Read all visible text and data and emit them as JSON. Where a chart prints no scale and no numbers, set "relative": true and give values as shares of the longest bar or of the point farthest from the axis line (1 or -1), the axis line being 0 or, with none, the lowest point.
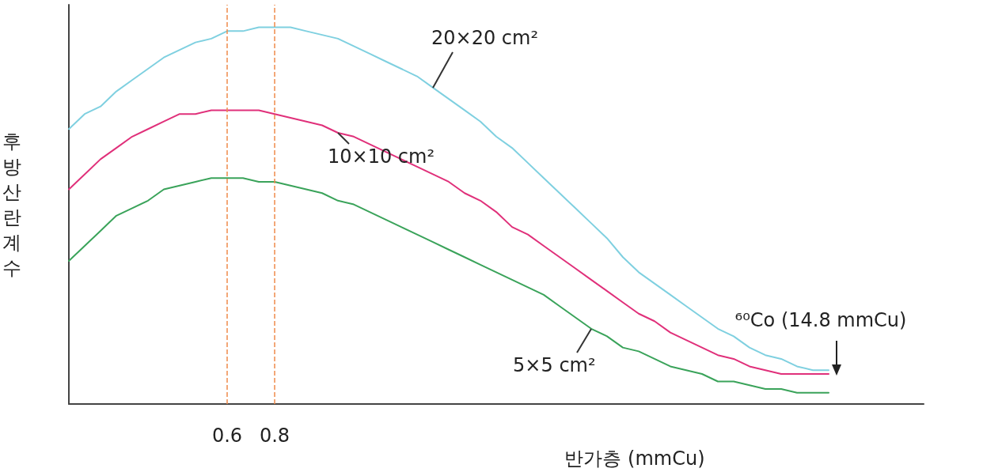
{
  "chart_data": {
    "type": "line",
    "relative": true,
    "xlabel": "반가층 (mmCu)",
    "ylabel": "후방산란계수",
    "categories": [
      null,
      null,
      null,
      null,
      null,
      null,
      null,
      null,
      null,
      null,
      "0.6",
      null,
      null,
      "0.8",
      null,
      null,
      null,
      null,
      null,
      null,
      null,
      null,
      null,
      null,
      null,
      null,
      null,
      null,
      null,
      null,
      null,
      null,
      null,
      null,
      null,
      null,
      null,
      null,
      null,
      null,
      null,
      null,
      null,
      null,
      null,
      null,
      null,
      null,
      null,
      null,
      null,
      null,
      null,
      null,
      null
    ],
    "series": [
      {
        "name": "20×20 cm²",
        "color": "#7fd0e0",
        "values": [
          0.73,
          0.77,
          0.79,
          0.83,
          0.86,
          0.89,
          0.92,
          0.94,
          0.96,
          0.97,
          0.99,
          0.99,
          1,
          1,
          1,
          0.99,
          0.98,
          0.97,
          0.95,
          0.93,
          0.91,
          0.89,
          0.87,
          0.84,
          0.81,
          0.78,
          0.75,
          0.71,
          0.68,
          0.64,
          0.6,
          0.56,
          0.52,
          0.48,
          0.44,
          0.39,
          0.35,
          0.32,
          0.29,
          0.26,
          0.23,
          0.2,
          0.18,
          0.15,
          0.13,
          0.12,
          0.1,
          0.09,
          0.09,
          null,
          null,
          null,
          null,
          null,
          null
        ]
      },
      {
        "name": "10×10 cm²",
        "color": "#e0307a",
        "values": [
          0.57,
          0.61,
          0.65,
          0.68,
          0.71,
          0.73,
          0.75,
          0.77,
          0.77,
          0.78,
          0.78,
          0.78,
          0.78,
          0.77,
          0.76,
          0.75,
          0.74,
          0.72,
          0.71,
          0.69,
          0.67,
          0.65,
          0.63,
          0.61,
          0.59,
          0.56,
          0.54,
          0.51,
          0.47,
          0.45,
          0.42,
          0.39,
          0.36,
          0.33,
          0.3,
          0.27,
          0.24,
          0.22,
          0.19,
          0.17,
          0.15,
          0.13,
          0.12,
          0.1,
          0.09,
          0.08,
          0.08,
          0.08,
          0.08,
          null,
          null,
          null,
          null,
          null,
          null
        ]
      },
      {
        "name": "5×5 cm²",
        "color": "#3aa35a",
        "values": [
          0.38,
          0.42,
          0.46,
          0.5,
          0.52,
          0.54,
          0.57,
          0.58,
          0.59,
          0.6,
          0.6,
          0.6,
          0.59,
          0.59,
          0.58,
          0.57,
          0.56,
          0.54,
          0.53,
          0.51,
          0.49,
          0.47,
          0.45,
          0.43,
          0.41,
          0.39,
          0.37,
          0.35,
          0.33,
          0.31,
          0.29,
          0.26,
          0.23,
          0.2,
          0.18,
          0.15,
          0.14,
          0.12,
          0.1,
          0.09,
          0.08,
          0.06,
          0.06,
          0.05,
          0.04,
          0.04,
          0.03,
          0.03,
          0.03,
          null,
          null,
          null,
          null,
          null,
          null
        ]
      }
    ],
    "ref_lines": [
      {
        "axis": "x",
        "value": "0.6",
        "color": "#f08a4b",
        "line_style": "dashed"
      },
      {
        "axis": "x",
        "value": "0.8",
        "color": "#f08a4b",
        "line_style": "dashed"
      }
    ],
    "annotations": [
      "⁶⁰Co (14.8 mmCu)"
    ],
    "grid": false,
    "legend": false,
    "marker": "none",
    "line_style": "solid"
  }
}
